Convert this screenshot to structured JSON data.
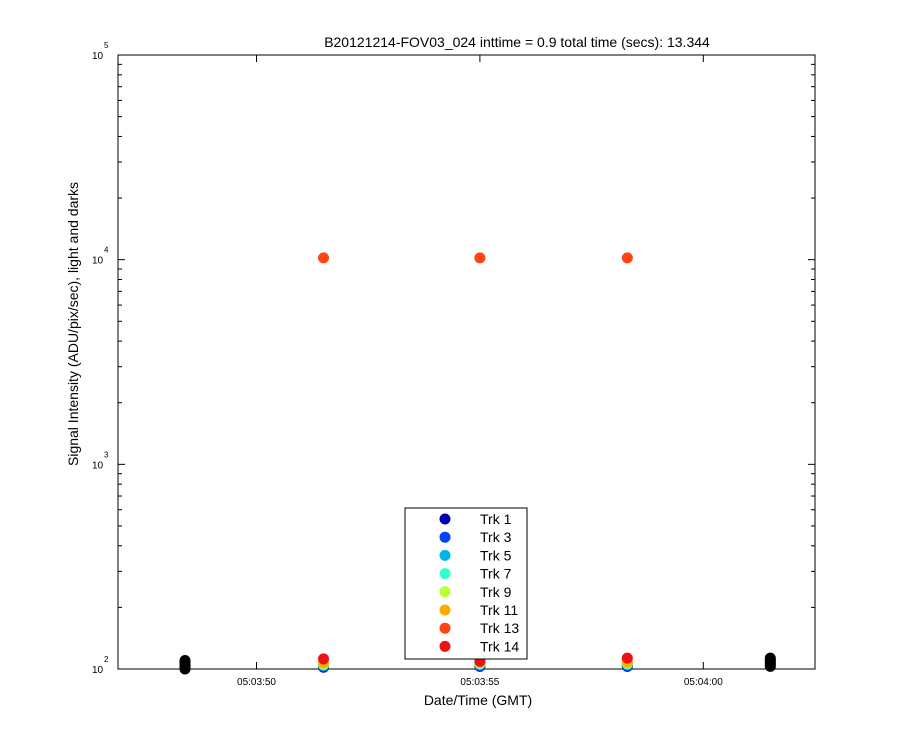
{
  "chart_data": {
    "type": "scatter",
    "title": "B20121214-FOV03_024 inttime = 0.9 total time (secs): 13.344",
    "xlabel": "Date/Time (GMT)",
    "ylabel": "Signal Intensity (ADU/pix/sec), light and darks",
    "yscale": "log",
    "ylim": [
      100,
      100000
    ],
    "xlim": [
      "05:03:46.9",
      "05:04:02.5"
    ],
    "grid": false,
    "legend_position": "bottom-center",
    "y_ticks": [
      {
        "base": "10",
        "exp": "2",
        "value": 100
      },
      {
        "base": "10",
        "exp": "3",
        "value": 1000
      },
      {
        "base": "10",
        "exp": "4",
        "value": 10000
      },
      {
        "base": "10",
        "exp": "5",
        "value": 100000
      }
    ],
    "x_ticks": [
      {
        "label": "05:03:50",
        "value": "05:03:50"
      },
      {
        "label": "05:03:55",
        "value": "05:03:55"
      },
      {
        "label": "05:04:00",
        "value": "05:04:00"
      }
    ],
    "series": [
      {
        "name": "Trk 1",
        "color": "#0000b4",
        "points": [
          {
            "x": "05:03:51.5",
            "y": 102
          },
          {
            "x": "05:03:55.0",
            "y": 103
          },
          {
            "x": "05:03:58.3",
            "y": 103
          }
        ]
      },
      {
        "name": "Trk 3",
        "color": "#0044ff",
        "points": [
          {
            "x": "05:03:51.5",
            "y": 103
          },
          {
            "x": "05:03:55.0",
            "y": 104
          },
          {
            "x": "05:03:58.3",
            "y": 104
          }
        ]
      },
      {
        "name": "Trk 5",
        "color": "#00b4ee",
        "points": [
          {
            "x": "05:03:51.5",
            "y": 104
          },
          {
            "x": "05:03:55.0",
            "y": 105
          },
          {
            "x": "05:03:58.3",
            "y": 105
          }
        ]
      },
      {
        "name": "Trk 7",
        "color": "#33ffcc",
        "points": [
          {
            "x": "05:03:51.5",
            "y": 105
          },
          {
            "x": "05:03:55.0",
            "y": 106
          },
          {
            "x": "05:03:58.3",
            "y": 106
          }
        ]
      },
      {
        "name": "Trk 9",
        "color": "#bbff33",
        "points": [
          {
            "x": "05:03:51.5",
            "y": 106
          },
          {
            "x": "05:03:55.0",
            "y": 107
          },
          {
            "x": "05:03:58.3",
            "y": 107
          }
        ]
      },
      {
        "name": "Trk 11",
        "color": "#ffaa00",
        "points": [
          {
            "x": "05:03:51.5",
            "y": 107
          },
          {
            "x": "05:03:55.0",
            "y": 108
          },
          {
            "x": "05:03:58.3",
            "y": 108
          }
        ]
      },
      {
        "name": "Trk 13",
        "color": "#ff4411",
        "points": [
          {
            "x": "05:03:51.5",
            "y": 10200
          },
          {
            "x": "05:03:55.0",
            "y": 10200
          },
          {
            "x": "05:03:58.3",
            "y": 10200
          }
        ]
      },
      {
        "name": "Trk 14",
        "color": "#ee1111",
        "points": [
          {
            "x": "05:03:51.5",
            "y": 112
          },
          {
            "x": "05:03:55.0",
            "y": 109
          },
          {
            "x": "05:03:58.3",
            "y": 113
          }
        ]
      }
    ],
    "dark_frames": {
      "color": "#000000",
      "points": [
        {
          "x": "05:03:48.4",
          "y": 100
        },
        {
          "x": "05:03:48.4",
          "y": 102
        },
        {
          "x": "05:03:48.4",
          "y": 104
        },
        {
          "x": "05:03:48.4",
          "y": 106
        },
        {
          "x": "05:03:48.4",
          "y": 108
        },
        {
          "x": "05:03:48.4",
          "y": 110
        },
        {
          "x": "05:04:01.5",
          "y": 103
        },
        {
          "x": "05:04:01.5",
          "y": 105
        },
        {
          "x": "05:04:01.5",
          "y": 107
        },
        {
          "x": "05:04:01.5",
          "y": 109
        },
        {
          "x": "05:04:01.5",
          "y": 111
        },
        {
          "x": "05:04:01.5",
          "y": 113
        }
      ]
    }
  }
}
